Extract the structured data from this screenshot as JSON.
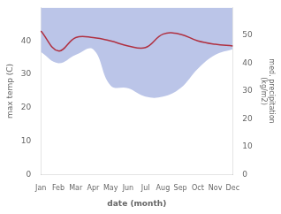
{
  "chart_data": {
    "type": "line",
    "xlabel": "date (month)",
    "ylabel": "max temp (C)",
    "y2label": "med. precipitation\n(kg/m2)",
    "categories": [
      "Jan",
      "Feb",
      "Mar",
      "Apr",
      "May",
      "Jun",
      "Jul",
      "Aug",
      "Sep",
      "Oct",
      "Nov",
      "Dec"
    ],
    "series": [
      {
        "type": "line",
        "color": "#b03040",
        "values": [
          43,
          37,
          41,
          41,
          40,
          38.5,
          38,
          42,
          42,
          40,
          39,
          38.5
        ]
      },
      {
        "type": "area",
        "axis": "y2",
        "color": "#bbc5e8",
        "values": [
          44,
          40,
          43,
          45,
          32,
          31,
          28,
          28,
          31,
          38,
          43,
          45
        ]
      }
    ],
    "ylim": [
      0,
      50
    ],
    "yticks": [
      0,
      10,
      20,
      30,
      40
    ],
    "y2lim": [
      0,
      60
    ],
    "y2ticks": [
      0,
      10,
      20,
      30,
      40,
      50
    ],
    "grid": false
  }
}
